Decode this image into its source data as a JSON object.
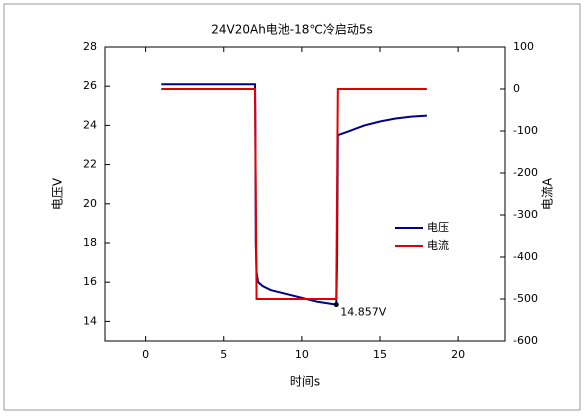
{
  "chart_data": {
    "type": "line",
    "title": "24V20Ah电池-18℃冷启动5s",
    "x_label": "时间s",
    "y_label": "电压V",
    "y2_label": "电流A",
    "xlim": [
      -2.6,
      23
    ],
    "xticks": [
      0,
      5,
      10,
      15,
      20
    ],
    "ylim": [
      13,
      28
    ],
    "yticks": [
      14,
      16,
      18,
      20,
      22,
      24,
      26,
      28
    ],
    "y2lim": [
      -600,
      100
    ],
    "y2ticks": [
      -600,
      -500,
      -400,
      -300,
      -200,
      -100,
      0,
      100
    ],
    "legend": "right",
    "series": [
      {
        "name": "电压",
        "color": "#00008b",
        "axis": "y",
        "x": [
          1,
          7,
          7.02,
          7.05,
          7.1,
          7.2,
          7.5,
          8,
          9,
          10,
          11,
          12.2,
          12.25,
          12.3,
          13,
          14,
          15,
          16,
          17,
          18
        ],
        "values": [
          26.1,
          26.1,
          24.4,
          18,
          16.5,
          16.0,
          15.8,
          15.6,
          15.4,
          15.2,
          15.0,
          14.857,
          17,
          23.5,
          23.7,
          24.0,
          24.2,
          24.35,
          24.45,
          24.5
        ]
      },
      {
        "name": "电流",
        "color": "#e00000",
        "axis": "y2",
        "x": [
          1,
          7,
          7.1,
          12.2,
          12.3,
          18
        ],
        "values": [
          0,
          0,
          -500,
          -500,
          0,
          0
        ]
      }
    ],
    "annotations": [
      {
        "text": "14.857V",
        "x": 12.2,
        "y": 14.857
      }
    ]
  }
}
